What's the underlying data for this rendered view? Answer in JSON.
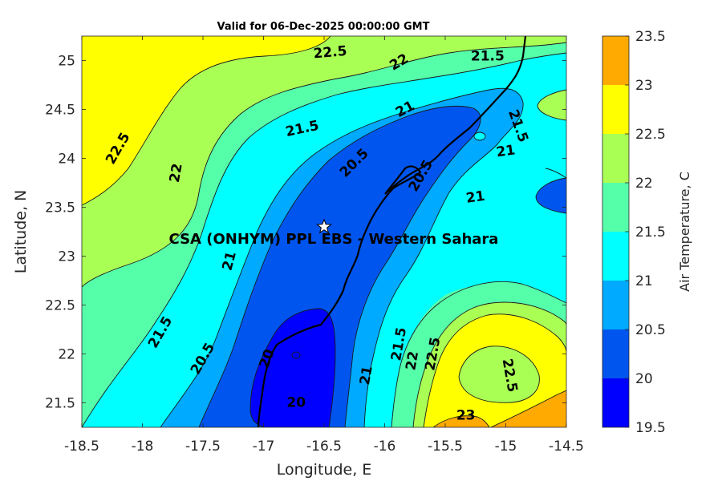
{
  "chart_data": {
    "type": "contour",
    "title": "Valid for 06-Dec-2025 00:00:00 GMT",
    "xlabel": "Longitude, E",
    "ylabel": "Latitude, N",
    "xlim": [
      -18.5,
      -14.5
    ],
    "ylim": [
      21.25,
      25.25
    ],
    "xticks": [
      -18.5,
      -18,
      -17.5,
      -17,
      -16.5,
      -16,
      -15.5,
      -15,
      -14.5
    ],
    "xtick_labels": [
      "-18.5",
      "-18",
      "-17.5",
      "-17",
      "-16.5",
      "-16",
      "-15.5",
      "-15",
      "-14.5"
    ],
    "yticks": [
      21.5,
      22,
      22.5,
      23,
      23.5,
      24,
      24.5,
      25
    ],
    "ytick_labels": [
      "21.5",
      "22",
      "22.5",
      "23",
      "23.5",
      "24",
      "24.5",
      "25"
    ],
    "colorbar": {
      "label": "Air Temperature, C",
      "levels": [
        19.5,
        20,
        20.5,
        21,
        21.5,
        22,
        22.5,
        23,
        23.5
      ],
      "level_labels": [
        "19.5",
        "20",
        "20.5",
        "21",
        "21.5",
        "22",
        "22.5",
        "23",
        "23.5"
      ],
      "colors": [
        "#0000ff",
        "#0055ee",
        "#00aaff",
        "#00ffff",
        "#55ffaa",
        "#aaff55",
        "#ffff00",
        "#ffaa00",
        "#ff5500"
      ]
    },
    "site": {
      "label": "CSA (ONHYM) PPL EBS - Western Sahara",
      "lon": -16.5,
      "lat": 23.3
    },
    "contour_labels": [
      {
        "text": "22.5",
        "lon": -16.45,
        "lat": 25.08,
        "angle": -5
      },
      {
        "text": "22",
        "lon": -15.88,
        "lat": 24.98,
        "angle": -30
      },
      {
        "text": "21.5",
        "lon": -15.15,
        "lat": 25.04,
        "angle": 0
      },
      {
        "text": "21",
        "lon": -15.83,
        "lat": 24.5,
        "angle": -28
      },
      {
        "text": "21.5",
        "lon": -14.9,
        "lat": 24.33,
        "angle": 70
      },
      {
        "text": "22.5",
        "lon": -18.2,
        "lat": 24.1,
        "angle": -60
      },
      {
        "text": "22",
        "lon": -17.72,
        "lat": 23.85,
        "angle": -80
      },
      {
        "text": "21.5",
        "lon": -16.68,
        "lat": 24.3,
        "angle": -12
      },
      {
        "text": "20.5",
        "lon": -16.25,
        "lat": 23.95,
        "angle": -45
      },
      {
        "text": "20.5",
        "lon": -15.7,
        "lat": 23.82,
        "angle": -60
      },
      {
        "text": "21",
        "lon": -15.0,
        "lat": 24.07,
        "angle": -8
      },
      {
        "text": "21",
        "lon": -15.25,
        "lat": 23.6,
        "angle": -8
      },
      {
        "text": "21",
        "lon": -17.28,
        "lat": 22.95,
        "angle": -75
      },
      {
        "text": "21.5",
        "lon": -17.85,
        "lat": 22.22,
        "angle": -60
      },
      {
        "text": "20.5",
        "lon": -17.5,
        "lat": 21.95,
        "angle": -60
      },
      {
        "text": "20",
        "lon": -16.97,
        "lat": 21.95,
        "angle": -70
      },
      {
        "text": "20",
        "lon": -16.73,
        "lat": 21.5,
        "angle": 0
      },
      {
        "text": "21",
        "lon": -16.15,
        "lat": 21.78,
        "angle": -80
      },
      {
        "text": "21.5",
        "lon": -15.88,
        "lat": 22.1,
        "angle": -80
      },
      {
        "text": "22",
        "lon": -15.77,
        "lat": 21.93,
        "angle": -80
      },
      {
        "text": "22.5",
        "lon": -15.6,
        "lat": 22.0,
        "angle": -80
      },
      {
        "text": "22.5",
        "lon": -14.97,
        "lat": 21.78,
        "angle": 80
      },
      {
        "text": "23",
        "lon": -15.33,
        "lat": 21.37,
        "angle": 0
      }
    ]
  }
}
